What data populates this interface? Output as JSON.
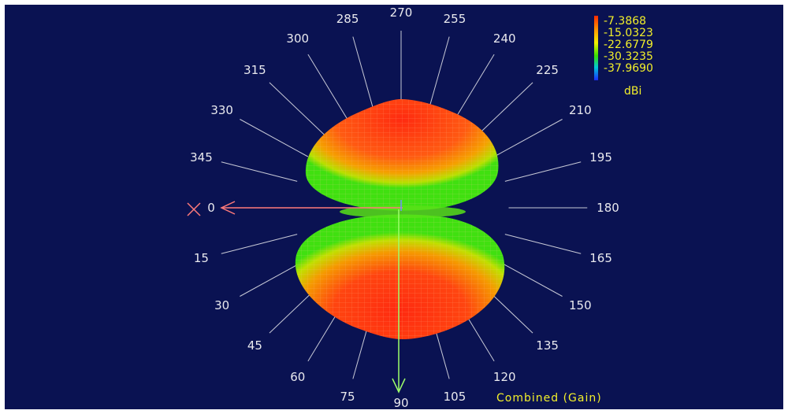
{
  "angle_labels": [
    "0",
    "15",
    "30",
    "45",
    "60",
    "75",
    "90",
    "105",
    "120",
    "135",
    "150",
    "165",
    "180",
    "195",
    "210",
    "225",
    "240",
    "255",
    "270",
    "285",
    "300",
    "315",
    "330",
    "345"
  ],
  "legend": {
    "values": [
      "-7.3868",
      "-15.0323",
      "-22.6779",
      "-30.3235",
      "-37.9690"
    ],
    "unit": "dBi",
    "colors": [
      "#ff2a00",
      "#ff9900",
      "#f2f200",
      "#38e000",
      "#00c8d8",
      "#1a2cff"
    ]
  },
  "caption": "Combined (Gain)",
  "colors": {
    "background": "#0a1252",
    "pattern_hot": "#ff2a10",
    "pattern_mid": "#f5a000",
    "pattern_cool": "#40e010",
    "x_axis": "#ff7a7a",
    "y_axis": "#9dff6a",
    "spokes": "#e9e9ee"
  }
}
